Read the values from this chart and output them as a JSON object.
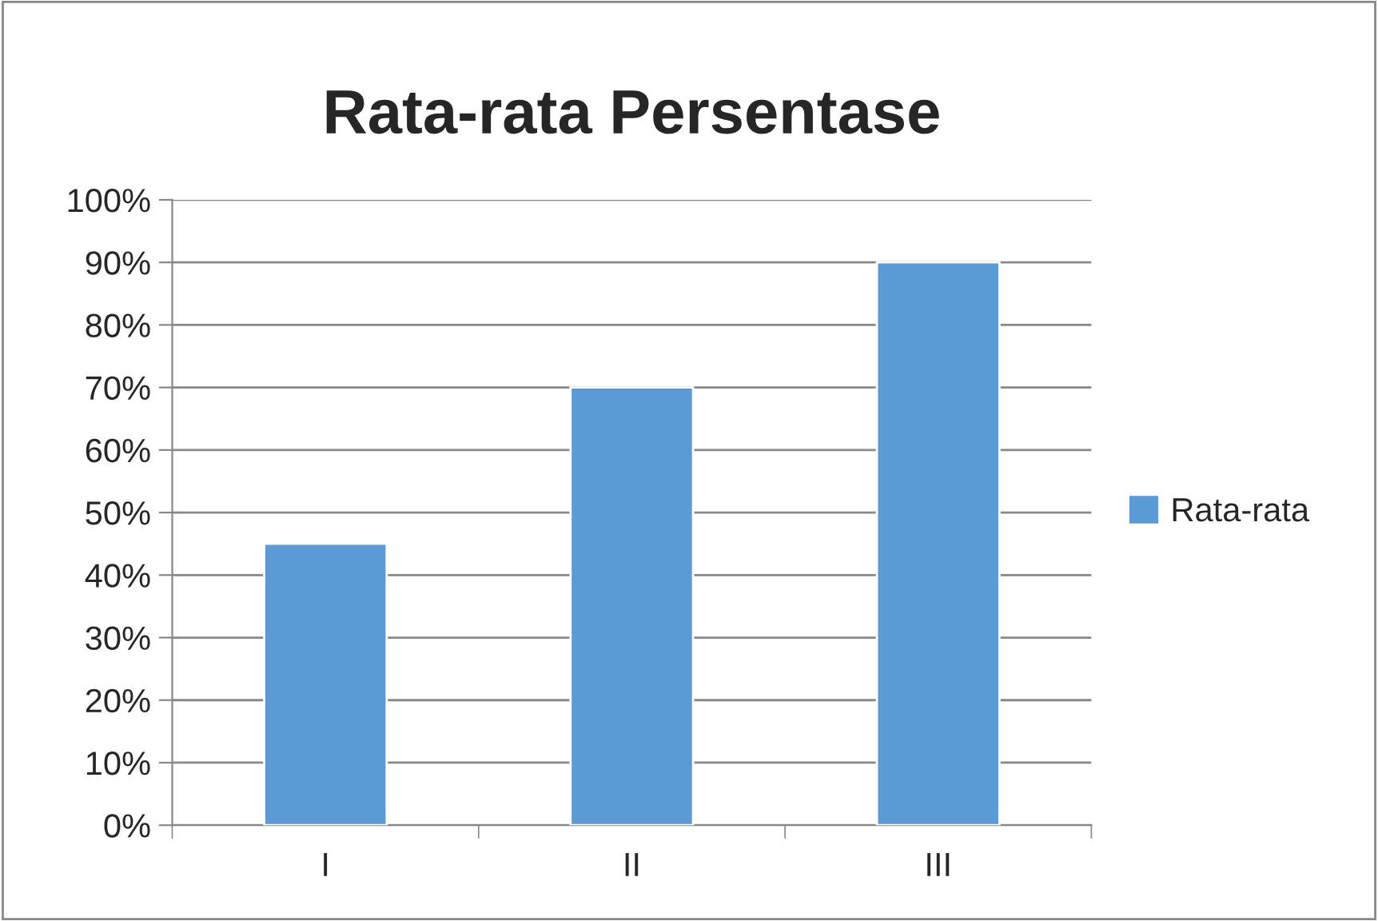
{
  "chart_data": {
    "type": "bar",
    "title": "Rata-rata Persentase",
    "categories": [
      "I",
      "II",
      "III"
    ],
    "series": [
      {
        "name": "Rata-rata",
        "color": "#5b9bd5",
        "values": [
          45,
          70,
          90
        ]
      }
    ],
    "ylim": [
      0,
      100
    ],
    "yticks": [
      {
        "value": 0,
        "label": "0%"
      },
      {
        "value": 10,
        "label": "10%"
      },
      {
        "value": 20,
        "label": "20%"
      },
      {
        "value": 30,
        "label": "30%"
      },
      {
        "value": 40,
        "label": "40%"
      },
      {
        "value": 50,
        "label": "50%"
      },
      {
        "value": 60,
        "label": "60%"
      },
      {
        "value": 70,
        "label": "70%"
      },
      {
        "value": 80,
        "label": "80%"
      },
      {
        "value": 90,
        "label": "90%"
      },
      {
        "value": 100,
        "label": "100%"
      }
    ],
    "grid": "y",
    "legend": "right"
  }
}
